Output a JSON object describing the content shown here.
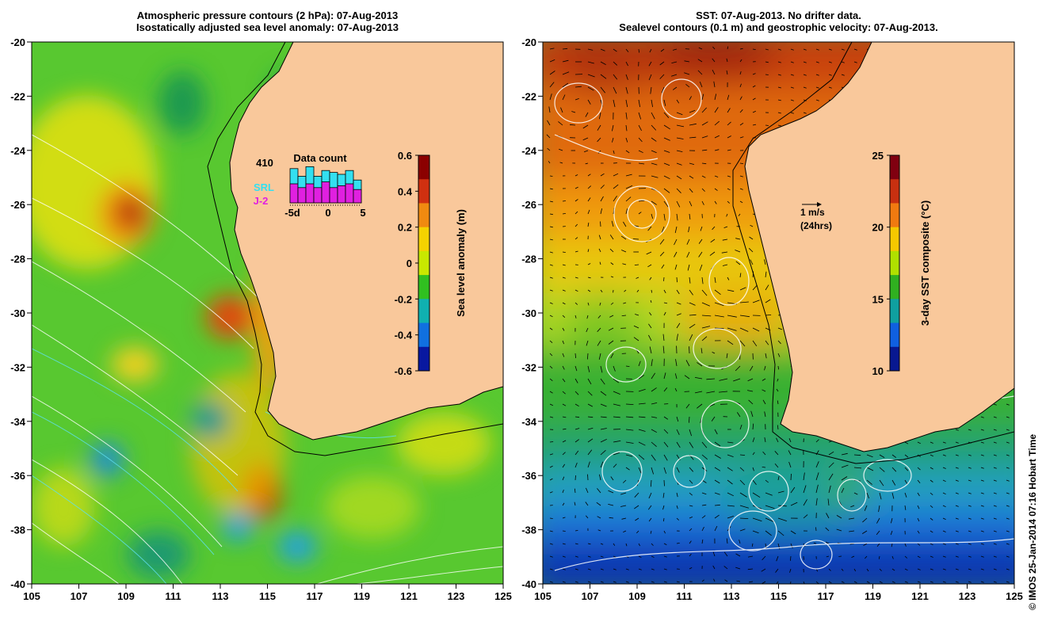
{
  "left_panel": {
    "title_line1": "Atmospheric pressure contours (2 hPa): 07-Aug-2013",
    "title_line2": "Isostatically adjusted sea level anomaly: 07-Aug-2013",
    "colorbar": {
      "label": "Sea level anomaly (m)",
      "ticks": [
        "0.6",
        "0.4",
        "0.2",
        "0",
        "-0.2",
        "-0.4",
        "-0.6"
      ],
      "colors": [
        "#8b0000",
        "#d03010",
        "#f08a10",
        "#f5d200",
        "#c8e800",
        "#30c020",
        "#10b0b0",
        "#1070e0",
        "#0818a0"
      ]
    },
    "inset": {
      "title": "Data count",
      "count": "410",
      "series": [
        {
          "name": "SRL",
          "color": "#33e0f0",
          "values": [
            0.9,
            0.7,
            0.95,
            0.7,
            0.85,
            0.8,
            0.75,
            0.85,
            0.6
          ]
        },
        {
          "name": "J-2",
          "color": "#e020e0",
          "values": [
            0.5,
            0.4,
            0.5,
            0.4,
            0.55,
            0.4,
            0.45,
            0.5,
            0.35
          ]
        }
      ],
      "x_labels": [
        "-5d",
        "0",
        "5"
      ]
    }
  },
  "right_panel": {
    "title_line1": "SST: 07-Aug-2013. No drifter data.",
    "title_line2": "Sealevel contours (0.1 m) and geostrophic velocity: 07-Aug-2013.",
    "colorbar": {
      "label": "3-day SST composite (°C)",
      "ticks": [
        "25",
        "20",
        "15",
        "10"
      ],
      "colors": [
        "#800010",
        "#c83010",
        "#f07a10",
        "#f5c800",
        "#b0e000",
        "#30b020",
        "#10a0a0",
        "#1060e0",
        "#081890"
      ]
    },
    "velocity_scale": {
      "label": "1 m/s",
      "sublabel": "(24hrs)"
    }
  },
  "axes": {
    "lat_ticks": [
      "-20",
      "-22",
      "-24",
      "-26",
      "-28",
      "-30",
      "-32",
      "-34",
      "-36",
      "-38",
      "-40"
    ],
    "lon_ticks": [
      "105",
      "107",
      "109",
      "111",
      "113",
      "115",
      "117",
      "119",
      "121",
      "123",
      "125"
    ]
  },
  "credit": "© IMOS 25-Jan-2014 07:16 Hobart Time",
  "colors": {
    "land": "#f9c89b",
    "coast": "#000000"
  }
}
